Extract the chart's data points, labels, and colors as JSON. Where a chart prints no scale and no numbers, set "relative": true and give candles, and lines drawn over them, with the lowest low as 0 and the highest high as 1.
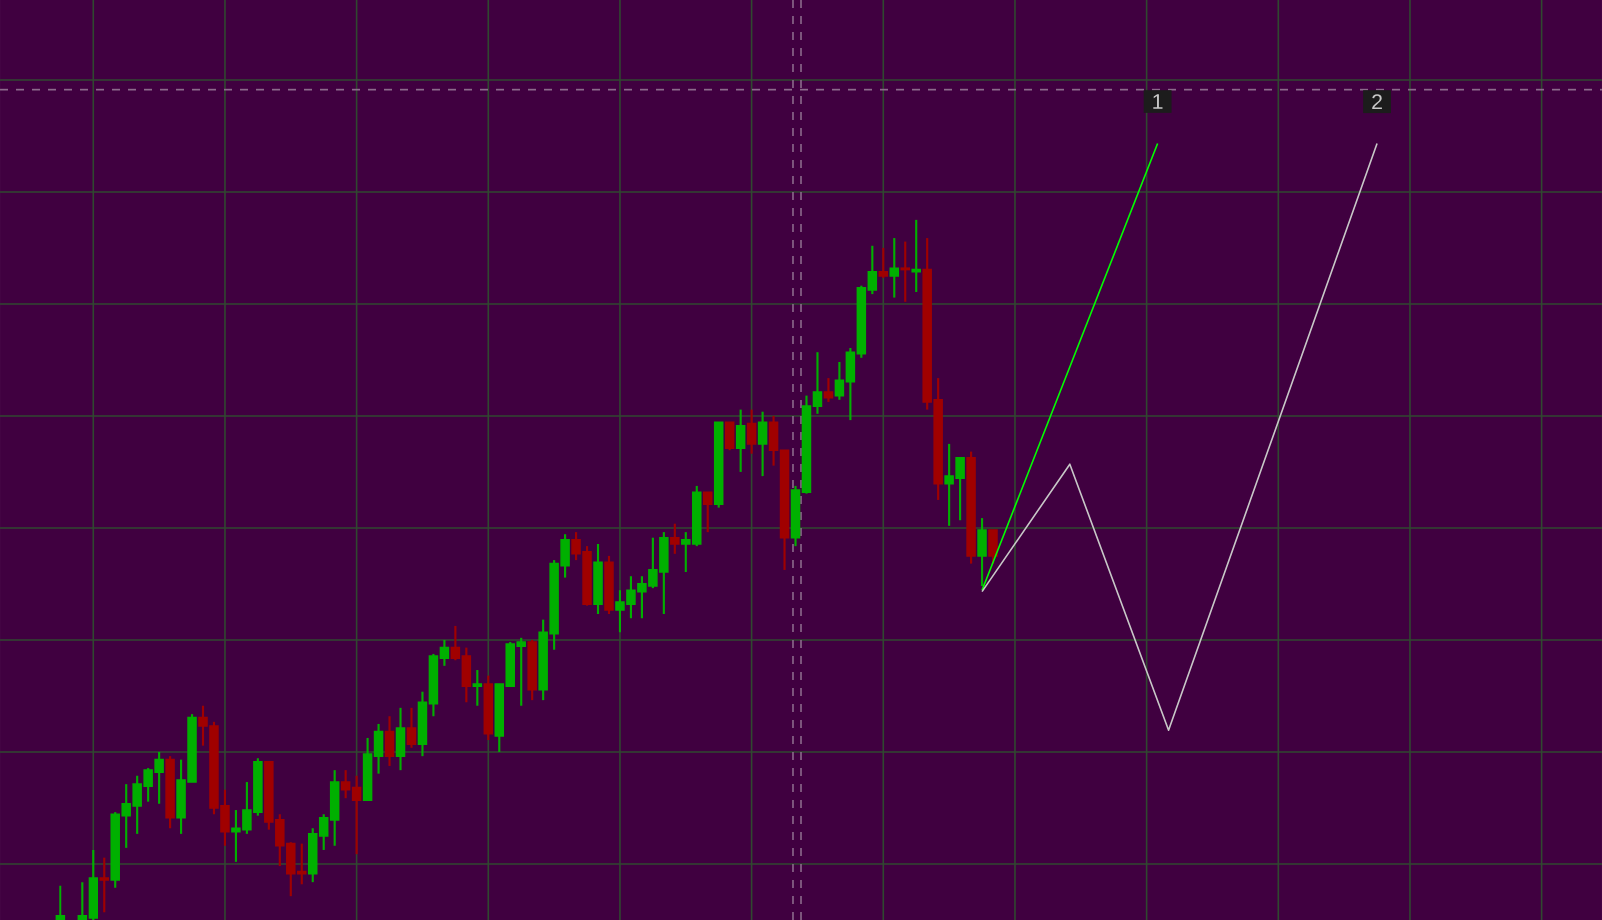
{
  "chart_data": {
    "type": "candlestick",
    "relative": true,
    "grid": true,
    "marker": "none",
    "categories": [
      null,
      null,
      null,
      null,
      null,
      null,
      null,
      null,
      null,
      null,
      null,
      null,
      null,
      null,
      null,
      null,
      null,
      null,
      null,
      null,
      null,
      null,
      null,
      null,
      null,
      null,
      null,
      null,
      null,
      null,
      null,
      null,
      null,
      null,
      null,
      null,
      null,
      null,
      null,
      null,
      null,
      null,
      null,
      null,
      null,
      null,
      null,
      null,
      null,
      null,
      null,
      null,
      null,
      null,
      null,
      null,
      null,
      null,
      null,
      null,
      null,
      null,
      null,
      null,
      null,
      null,
      null,
      null,
      null,
      null,
      null,
      null,
      null,
      null,
      null,
      null,
      null,
      null,
      null,
      null,
      null,
      null,
      null,
      null,
      null,
      null,
      null,
      null,
      null,
      null,
      null,
      null,
      null,
      null,
      null,
      null,
      null,
      null,
      null,
      null,
      null,
      null,
      null,
      null,
      null,
      null,
      null,
      null,
      null,
      null,
      null,
      null,
      null,
      null,
      null,
      null,
      null,
      null,
      null,
      null,
      null,
      null,
      null,
      null,
      null,
      null,
      null,
      null,
      null,
      null,
      null,
      null,
      null,
      null,
      null,
      null,
      null,
      null,
      null,
      null,
      null,
      null,
      null,
      null,
      null,
      null
    ],
    "ohlc": [
      null,
      null,
      null,
      null,
      null,
      [
        0,
        0.049,
        0,
        0.006
      ],
      null,
      [
        0,
        0.054,
        0,
        0.006
      ],
      [
        0.003,
        0.1,
        0,
        0.06
      ],
      [
        0.06,
        0.089,
        0.011,
        0.057
      ],
      [
        0.057,
        0.154,
        0.046,
        0.151
      ],
      [
        0.149,
        0.194,
        0.103,
        0.166
      ],
      [
        0.163,
        0.206,
        0.123,
        0.194
      ],
      [
        0.191,
        0.217,
        0.169,
        0.214
      ],
      [
        0.211,
        0.24,
        0.166,
        0.229
      ],
      [
        0.229,
        0.234,
        0.131,
        0.146
      ],
      [
        0.146,
        0.229,
        0.123,
        0.2
      ],
      [
        0.197,
        0.294,
        0.197,
        0.289
      ],
      [
        0.289,
        0.306,
        0.249,
        0.277
      ],
      [
        0.277,
        0.283,
        0.151,
        0.16
      ],
      [
        0.163,
        0.186,
        0.106,
        0.126
      ],
      [
        0.126,
        0.157,
        0.083,
        0.131
      ],
      [
        0.129,
        0.197,
        0.123,
        0.157
      ],
      [
        0.154,
        0.231,
        0.149,
        0.226
      ],
      [
        0.226,
        0.226,
        0.129,
        0.14
      ],
      [
        0.143,
        0.151,
        0.077,
        0.106
      ],
      [
        0.109,
        0.111,
        0.034,
        0.066
      ],
      [
        0.069,
        0.109,
        0.051,
        0.066
      ],
      [
        0.066,
        0.131,
        0.054,
        0.123
      ],
      [
        0.12,
        0.151,
        0.1,
        0.146
      ],
      [
        0.143,
        0.214,
        0.106,
        0.197
      ],
      [
        0.197,
        0.214,
        0.174,
        0.186
      ],
      [
        0.189,
        0.206,
        0.094,
        0.171
      ],
      [
        0.171,
        0.26,
        0.171,
        0.237
      ],
      [
        0.234,
        0.28,
        0.209,
        0.269
      ],
      [
        0.269,
        0.291,
        0.22,
        0.234
      ],
      [
        0.234,
        0.303,
        0.214,
        0.274
      ],
      [
        0.274,
        0.303,
        0.246,
        0.251
      ],
      [
        0.251,
        0.326,
        0.234,
        0.311
      ],
      [
        0.309,
        0.38,
        0.291,
        0.377
      ],
      [
        0.374,
        0.4,
        0.363,
        0.389
      ],
      [
        0.389,
        0.42,
        0.371,
        0.374
      ],
      [
        0.377,
        0.389,
        0.311,
        0.334
      ],
      [
        0.334,
        0.357,
        0.306,
        0.337
      ],
      [
        0.337,
        0.349,
        0.257,
        0.266
      ],
      [
        0.263,
        0.337,
        0.24,
        0.337
      ],
      [
        0.334,
        0.397,
        0.334,
        0.394
      ],
      [
        0.391,
        0.403,
        0.306,
        0.397
      ],
      [
        0.397,
        0.4,
        0.314,
        0.329
      ],
      [
        0.329,
        0.429,
        0.314,
        0.411
      ],
      [
        0.409,
        0.514,
        0.386,
        0.509
      ],
      [
        0.506,
        0.551,
        0.489,
        0.543
      ],
      [
        0.543,
        0.554,
        0.514,
        0.523
      ],
      [
        0.526,
        0.534,
        0.449,
        0.451
      ],
      [
        0.451,
        0.537,
        0.437,
        0.511
      ],
      [
        0.511,
        0.52,
        0.437,
        0.443
      ],
      [
        0.443,
        0.471,
        0.411,
        0.454
      ],
      [
        0.451,
        0.491,
        0.431,
        0.471
      ],
      [
        0.469,
        0.491,
        0.431,
        0.48
      ],
      [
        0.477,
        0.546,
        0.474,
        0.5
      ],
      [
        0.497,
        0.554,
        0.437,
        0.546
      ],
      [
        0.546,
        0.566,
        0.523,
        0.537
      ],
      [
        0.537,
        0.554,
        0.497,
        0.543
      ],
      [
        0.537,
        0.62,
        0.534,
        0.611
      ],
      [
        0.611,
        0.611,
        0.554,
        0.594
      ],
      [
        0.594,
        0.711,
        0.589,
        0.711
      ],
      [
        0.711,
        0.711,
        0.671,
        0.674
      ],
      [
        0.674,
        0.729,
        0.64,
        0.706
      ],
      [
        0.709,
        0.729,
        0.666,
        0.68
      ],
      [
        0.68,
        0.726,
        0.634,
        0.711
      ],
      [
        0.711,
        0.72,
        0.649,
        0.671
      ],
      [
        0.671,
        0.671,
        0.5,
        0.546
      ],
      [
        0.546,
        0.62,
        0.534,
        0.614
      ],
      [
        0.611,
        0.749,
        0.609,
        0.734
      ],
      [
        0.734,
        0.811,
        0.723,
        0.754
      ],
      [
        0.754,
        0.774,
        0.74,
        0.746
      ],
      [
        0.749,
        0.797,
        0.743,
        0.771
      ],
      [
        0.769,
        0.817,
        0.714,
        0.811
      ],
      [
        0.809,
        0.906,
        0.803,
        0.903
      ],
      [
        0.9,
        0.963,
        0.894,
        0.926
      ],
      [
        0.926,
        0.96,
        0.917,
        0.92
      ],
      [
        0.92,
        0.974,
        0.889,
        0.931
      ],
      [
        0.931,
        0.969,
        0.883,
        0.929
      ],
      [
        0.926,
        1.0,
        0.897,
        0.929
      ],
      [
        0.929,
        0.974,
        0.729,
        0.74
      ],
      [
        0.743,
        0.774,
        0.6,
        0.623
      ],
      [
        0.623,
        0.68,
        0.563,
        0.634
      ],
      [
        0.631,
        0.66,
        0.571,
        0.66
      ],
      [
        0.66,
        0.669,
        0.509,
        0.52
      ],
      [
        0.52,
        0.574,
        0.477,
        0.557
      ],
      [
        0.557,
        0.557,
        0.509,
        0.52
      ],
      null,
      null,
      null,
      null,
      null,
      null,
      null,
      null,
      null,
      null,
      null,
      null,
      null,
      null,
      null,
      null,
      null,
      null,
      null,
      null,
      null,
      null,
      null,
      null,
      null,
      null,
      null,
      null,
      null,
      null,
      null,
      null,
      null,
      null,
      null,
      null,
      null,
      null,
      null,
      null,
      null,
      null,
      null,
      null,
      null,
      null,
      null,
      null,
      null,
      null,
      null,
      null,
      null,
      null,
      null
    ],
    "colors": [
      null,
      null,
      null,
      null,
      null,
      "#00b000",
      null,
      "#00b000",
      "#00b000",
      "#a00000",
      "#00b000",
      "#00b000",
      "#00b000",
      "#00b000",
      "#00b000",
      "#a00000",
      "#00b000",
      "#00b000",
      "#a00000",
      "#a00000",
      "#a00000",
      "#00b000",
      "#00b000",
      "#00b000",
      "#a00000",
      "#a00000",
      "#a00000",
      "#a00000",
      "#00b000",
      "#00b000",
      "#00b000",
      "#a00000",
      "#a00000",
      "#00b000",
      "#00b000",
      "#a00000",
      "#00b000",
      "#a00000",
      "#00b000",
      "#00b000",
      "#00b000",
      "#a00000",
      "#a00000",
      "#00b000",
      "#a00000",
      "#00b000",
      "#00b000",
      "#00b000",
      "#a00000",
      "#00b000",
      "#00b000",
      "#00b000",
      "#a00000",
      "#a00000",
      "#00b000",
      "#a00000",
      "#00b000",
      "#00b000",
      "#00b000",
      "#00b000",
      "#00b000",
      "#a00000",
      "#00b000",
      "#00b000",
      "#a00000",
      "#00b000",
      "#a00000",
      "#00b000",
      "#a00000",
      "#00b000",
      "#a00000",
      "#a00000",
      "#00b000",
      "#00b000",
      "#00b000",
      "#a00000",
      "#00b000",
      "#00b000",
      "#00b000",
      "#00b000",
      "#a00000",
      "#00b000",
      "#a00000",
      "#00b000",
      "#a00000",
      "#a00000",
      "#00b000",
      "#00b000",
      "#a00000",
      "#00b000",
      "#a00000",
      null,
      null,
      null,
      null,
      null,
      null,
      null,
      null,
      null,
      null,
      null,
      null,
      null,
      null,
      null,
      null,
      null,
      null,
      null,
      null,
      null,
      null,
      null,
      null,
      null,
      null,
      null,
      null,
      null,
      null,
      null,
      null,
      null,
      null,
      null,
      null,
      null,
      null,
      null,
      null,
      null,
      null,
      null,
      null,
      null,
      null,
      null,
      null,
      null,
      null,
      null,
      null,
      null,
      null,
      null
    ],
    "series": [
      {
        "type": "line",
        "color": "#00ff00",
        "line_style": "solid",
        "values": [
          null,
          null,
          null,
          null,
          null,
          null,
          null,
          null,
          null,
          null,
          null,
          null,
          null,
          null,
          null,
          null,
          null,
          null,
          null,
          null,
          null,
          null,
          null,
          null,
          null,
          null,
          null,
          null,
          null,
          null,
          null,
          null,
          null,
          null,
          null,
          null,
          null,
          null,
          null,
          null,
          null,
          null,
          null,
          null,
          null,
          null,
          null,
          null,
          null,
          null,
          null,
          null,
          null,
          null,
          null,
          null,
          null,
          null,
          null,
          null,
          null,
          null,
          null,
          null,
          null,
          null,
          null,
          null,
          null,
          null,
          null,
          null,
          null,
          null,
          null,
          null,
          null,
          null,
          null,
          null,
          null,
          null,
          null,
          null,
          null,
          null,
          null,
          null,
          null,
          0.471,
          null,
          null,
          null,
          null,
          null,
          null,
          null,
          null,
          null,
          null,
          null,
          null,
          null,
          null,
          null,
          1.109,
          null,
          null,
          null,
          null,
          null,
          null,
          null,
          null,
          null,
          null,
          null,
          null,
          null,
          null,
          null,
          null,
          null,
          null,
          null,
          null,
          null,
          null,
          null,
          null,
          null,
          null,
          null,
          null,
          null,
          null,
          null,
          null,
          null,
          null,
          null,
          null,
          null,
          null,
          null,
          null
        ]
      },
      {
        "type": "line",
        "color": "#c8c8c8",
        "line_style": "solid",
        "values": [
          null,
          null,
          null,
          null,
          null,
          null,
          null,
          null,
          null,
          null,
          null,
          null,
          null,
          null,
          null,
          null,
          null,
          null,
          null,
          null,
          null,
          null,
          null,
          null,
          null,
          null,
          null,
          null,
          null,
          null,
          null,
          null,
          null,
          null,
          null,
          null,
          null,
          null,
          null,
          null,
          null,
          null,
          null,
          null,
          null,
          null,
          null,
          null,
          null,
          null,
          null,
          null,
          null,
          null,
          null,
          null,
          null,
          null,
          null,
          null,
          null,
          null,
          null,
          null,
          null,
          null,
          null,
          null,
          null,
          null,
          null,
          null,
          null,
          null,
          null,
          null,
          null,
          null,
          null,
          null,
          null,
          null,
          null,
          null,
          null,
          null,
          null,
          null,
          null,
          0.469,
          null,
          null,
          null,
          null,
          null,
          null,
          null,
          0.651,
          null,
          null,
          null,
          null,
          null,
          null,
          null,
          null,
          0.271,
          null,
          null,
          null,
          null,
          null,
          null,
          null,
          null,
          null,
          null,
          null,
          null,
          null,
          null,
          null,
          null,
          null,
          null,
          1.109,
          null,
          null,
          null,
          null,
          null,
          null,
          null,
          null,
          null,
          null,
          null,
          null,
          null,
          null,
          null,
          null,
          null,
          null,
          null,
          null
        ]
      }
    ],
    "ref_lines": [
      {
        "axis": "y",
        "value": 1.186,
        "color": "#8c6a8c",
        "line_style": "dashed"
      }
    ],
    "annotations": [
      "1",
      "2"
    ]
  }
}
